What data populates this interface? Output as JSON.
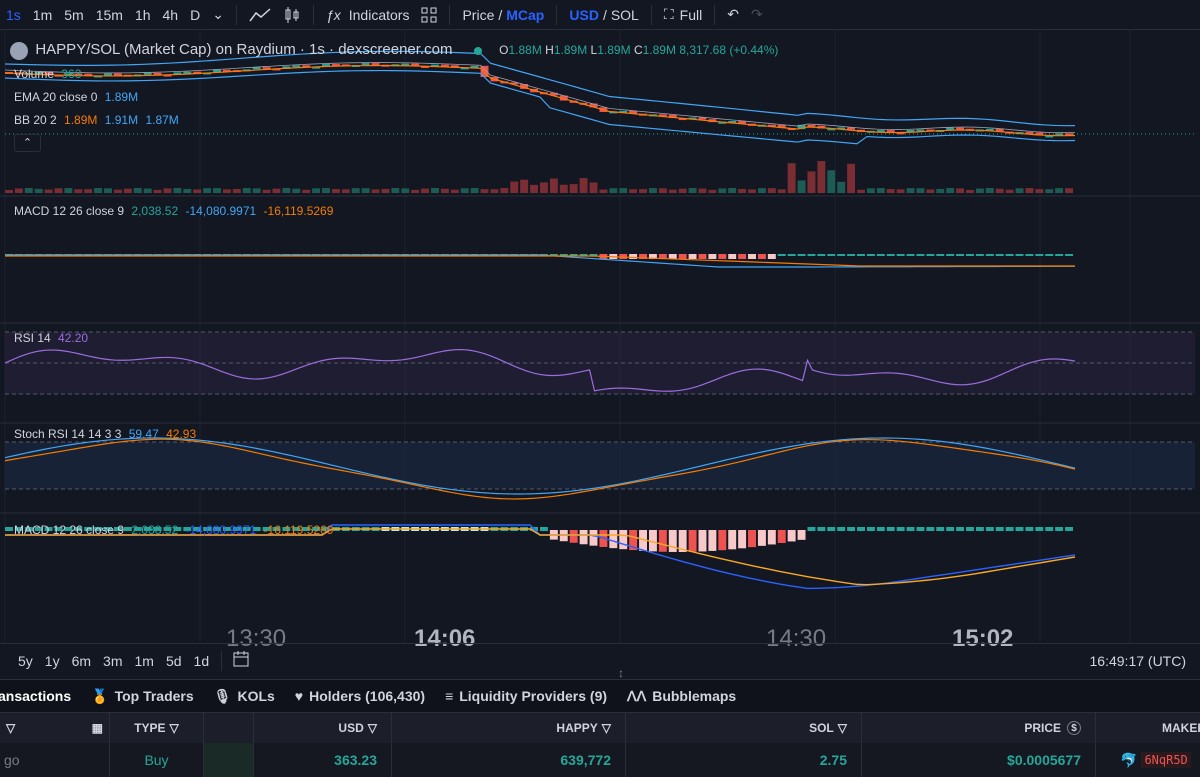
{
  "toolbar": {
    "intervals": [
      "1s",
      "1m",
      "5m",
      "15m",
      "1h",
      "4h",
      "D"
    ],
    "active_interval": "1s",
    "indicators_label": "Indicators",
    "price_label": "Price",
    "mcap_label": "MCap",
    "usd_label": "USD",
    "sol_label": "SOL",
    "full_label": "Full",
    "slash": "/"
  },
  "legend": {
    "title": "HAPPY/SOL (Market Cap) on Raydium · 1s · dexscreener.com",
    "o_label": "O",
    "o_val": "1.88M",
    "h_label": "H",
    "h_val": "1.89M",
    "l_label": "L",
    "l_val": "1.89M",
    "c_label": "C",
    "c_val": "1.89M",
    "change": "8,317.68 (+0.44%)",
    "volume_label": "Volume",
    "volume_val": "363",
    "ema_label": "EMA 20 close 0",
    "ema_val": "1.89M",
    "bb_label": "BB 20 2",
    "bb_v1": "1.89M",
    "bb_v2": "1.91M",
    "bb_v3": "1.87M",
    "macd_label": "MACD 12 26 close 9",
    "macd_v1": "2,038.52",
    "macd_v2": "-14,080.9971",
    "macd_v3": "-16,119.5269",
    "macd2_label": "MACD 12 26 close 9",
    "rsi_label": "RSI 14",
    "rsi_val": "42.20",
    "stoch_label": "Stoch RSI 14 14 3 3",
    "stoch_v1": "59.47",
    "stoch_v2": "42.93"
  },
  "time_axis": [
    "13:30",
    "14:06",
    "14:30",
    "15:02"
  ],
  "ranges": [
    "5y",
    "1y",
    "6m",
    "3m",
    "1m",
    "5d",
    "1d"
  ],
  "clock": "16:49:17 (UTC)",
  "tabs": [
    {
      "label": "ansactions"
    },
    {
      "label": "Top Traders"
    },
    {
      "label": "KOLs"
    },
    {
      "label": "Holders (106,430)"
    },
    {
      "label": "Liquidity Providers (9)"
    },
    {
      "label": "Bubblemaps"
    }
  ],
  "table": {
    "headers": {
      "type": "TYPE",
      "usd": "USD",
      "happy": "HAPPY",
      "sol": "SOL",
      "price": "PRICE",
      "maker": "MAKER"
    },
    "row": {
      "date": "go",
      "type": "Buy",
      "usd": "363.23",
      "happy": "639,772",
      "sol": "2.75",
      "price": "$0.0005677",
      "maker": "6NqR5D"
    }
  },
  "colors": {
    "up": "#26a69a",
    "down": "#ef5350",
    "accent": "#2962ff",
    "ema": "#f57c00",
    "bb": "#42a5f5",
    "rsi": "#9c6dde"
  }
}
